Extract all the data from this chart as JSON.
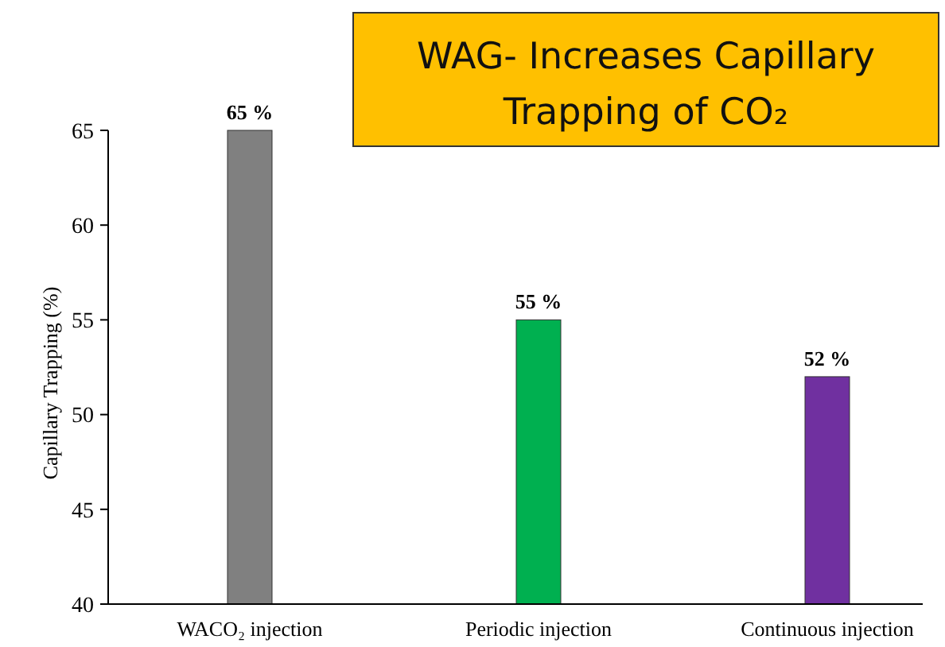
{
  "chart_data": {
    "type": "bar",
    "title": "WAG- Increases Capillary Trapping of CO₂",
    "ylabel": "Capillary Trapping (%)",
    "categories": [
      "WACO₂ injection",
      "Periodic injection",
      "Continuous injection"
    ],
    "values": [
      65,
      55,
      52
    ],
    "colors": [
      "#808080",
      "#00b050",
      "#7030a0"
    ],
    "value_labels": [
      "65 %",
      "55 %",
      "52 %"
    ],
    "ylim": [
      40,
      65
    ],
    "yticks": [
      40,
      45,
      50,
      55,
      60,
      65
    ],
    "grid": false
  }
}
